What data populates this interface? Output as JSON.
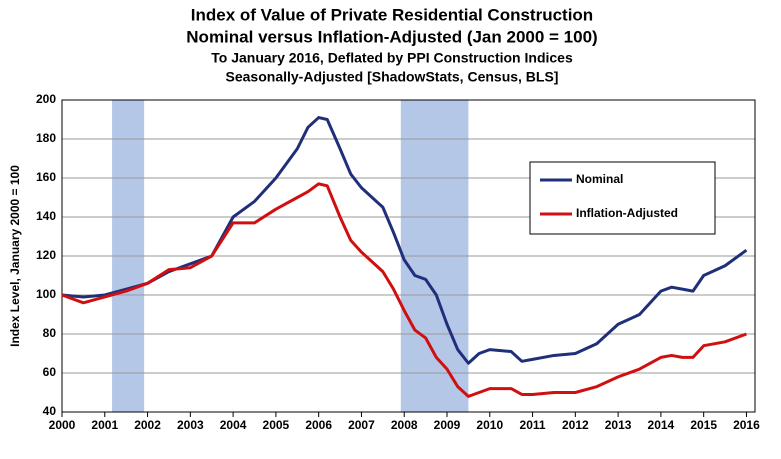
{
  "chart_data": {
    "type": "line",
    "title": "Index of Value of Private Residential Construction",
    "subtitle": [
      "Nominal versus Inflation-Adjusted  (Jan 2000 = 100)",
      "To January 2016, Deflated by PPI Construction Indices",
      "Seasonally-Adjusted [ShadowStats, Census, BLS]"
    ],
    "y_label": "Index Level, January 2000 = 100",
    "x": [
      2000,
      2000.5,
      2001,
      2001.5,
      2002,
      2002.5,
      2003,
      2003.5,
      2004,
      2004.5,
      2005,
      2005.5,
      2005.75,
      2006,
      2006.2,
      2006.5,
      2006.75,
      2007,
      2007.5,
      2007.75,
      2008,
      2008.25,
      2008.5,
      2008.75,
      2009,
      2009.25,
      2009.5,
      2009.75,
      2010,
      2010.5,
      2010.75,
      2011,
      2011.5,
      2012,
      2012.5,
      2013,
      2013.5,
      2014,
      2014.25,
      2014.5,
      2014.75,
      2015,
      2015.5,
      2016
    ],
    "series": [
      {
        "name": "Nominal",
        "color": "#1f2f7a",
        "values": [
          100,
          99,
          100,
          103,
          106,
          112,
          116,
          120,
          140,
          148,
          160,
          175,
          186,
          191,
          190,
          175,
          162,
          155,
          145,
          132,
          118,
          110,
          108,
          100,
          85,
          72,
          65,
          70,
          72,
          71,
          66,
          67,
          69,
          70,
          75,
          85,
          90,
          102,
          104,
          103,
          102,
          110,
          115,
          123
        ]
      },
      {
        "name": "Inflation-Adjusted",
        "color": "#d01010",
        "values": [
          100,
          96,
          99,
          102,
          106,
          113,
          114,
          120,
          137,
          137,
          144,
          150,
          153,
          157,
          156,
          140,
          128,
          122,
          112,
          103,
          92,
          82,
          78,
          68,
          62,
          53,
          48,
          50,
          52,
          52,
          49,
          49,
          50,
          50,
          53,
          58,
          62,
          68,
          69,
          68,
          68,
          74,
          76,
          80
        ]
      }
    ],
    "shaded_periods": [
      [
        2001.17,
        2001.92
      ],
      [
        2007.92,
        2009.5
      ]
    ],
    "shade_color": "#b4c7e7",
    "xlim": [
      2000,
      2016.2
    ],
    "xticks": [
      2000,
      2001,
      2002,
      2003,
      2004,
      2005,
      2006,
      2007,
      2008,
      2009,
      2010,
      2011,
      2012,
      2013,
      2014,
      2015,
      2016
    ],
    "ylim": [
      40,
      200
    ],
    "yticks": [
      40,
      60,
      80,
      100,
      120,
      140,
      160,
      180,
      200
    ],
    "grid": true,
    "legend": "right"
  }
}
